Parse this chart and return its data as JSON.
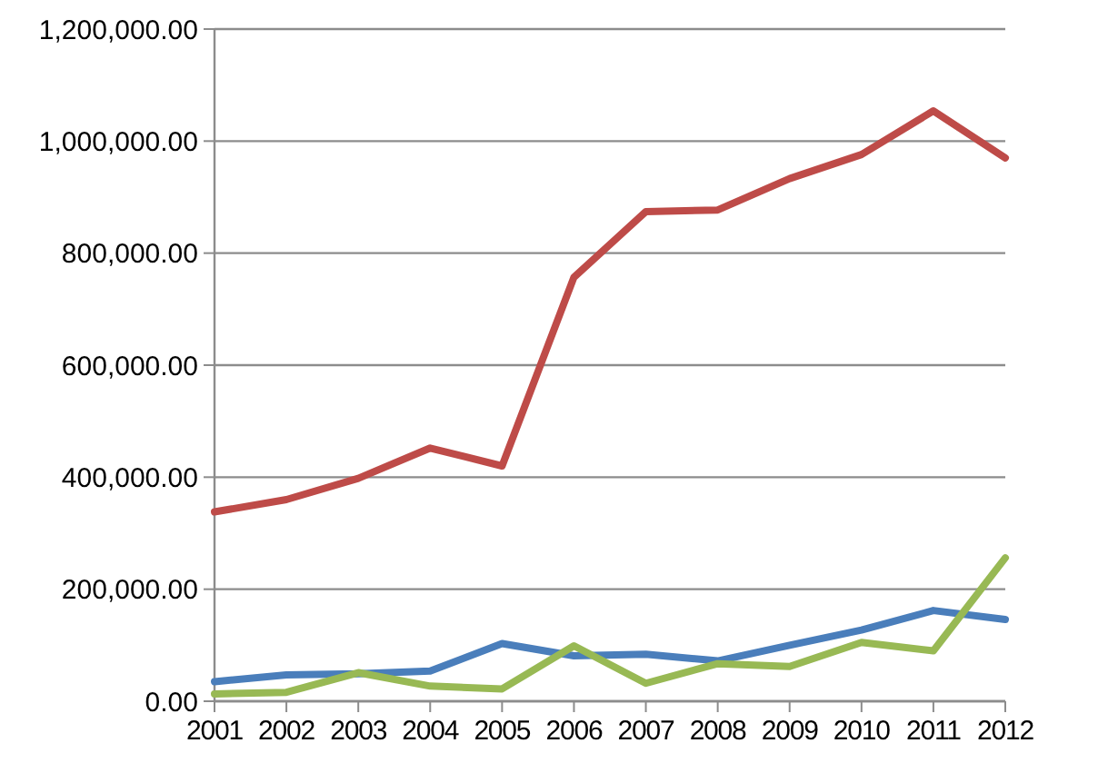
{
  "chart_data": {
    "type": "line",
    "categories": [
      "2001",
      "2002",
      "2003",
      "2004",
      "2005",
      "2006",
      "2007",
      "2008",
      "2009",
      "2010",
      "2011",
      "2012"
    ],
    "series": [
      {
        "color": "#4a7ebb",
        "values": [
          35000,
          47000,
          49000,
          54000,
          103000,
          81000,
          84000,
          72000,
          100000,
          127000,
          162000,
          146000
        ]
      },
      {
        "color": "#be4b48",
        "values": [
          338000,
          360000,
          398000,
          452000,
          420000,
          757000,
          874000,
          877000,
          933000,
          976000,
          1054000,
          970000
        ]
      },
      {
        "color": "#98b954",
        "values": [
          13000,
          16000,
          51000,
          27000,
          22000,
          99000,
          32000,
          67000,
          62000,
          105000,
          90000,
          256000
        ]
      }
    ],
    "ylim": [
      0,
      1200000
    ],
    "yticks": [
      {
        "value": 0,
        "label": "0.00"
      },
      {
        "value": 200000,
        "label": "200,000.00"
      },
      {
        "value": 400000,
        "label": "400,000.00"
      },
      {
        "value": 600000,
        "label": "600,000.00"
      },
      {
        "value": 800000,
        "label": "800,000.00"
      },
      {
        "value": 1000000,
        "label": "1,000,000.00"
      },
      {
        "value": 1200000,
        "label": "1,200,000.00"
      }
    ],
    "grid": "y",
    "line_style": "solid"
  }
}
